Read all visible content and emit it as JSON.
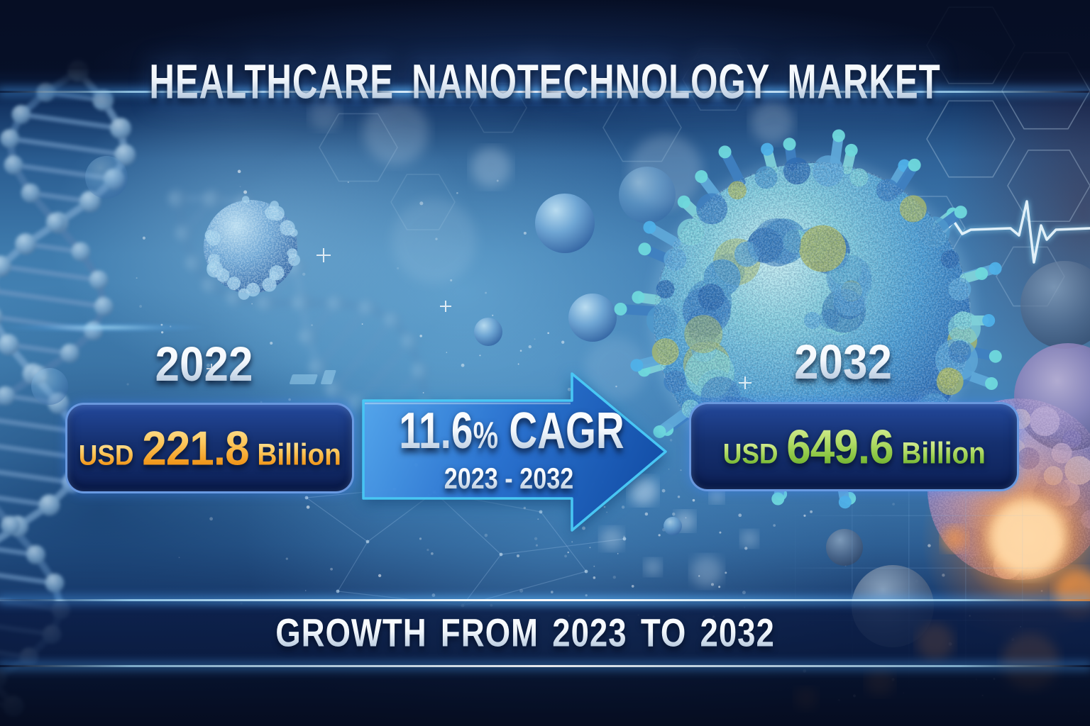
{
  "title": "HEALTHCARE NANOTECHNOLOGY MARKET",
  "left_stat": {
    "year": "2022",
    "currency": "USD",
    "value": "221.8",
    "unit": "Billion"
  },
  "right_stat": {
    "year": "2032",
    "currency": "USD",
    "value": "649.6",
    "unit": "Billion"
  },
  "growth": {
    "value": "11.6",
    "percent": "%",
    "label": "CAGR",
    "period": "2023 - 2032"
  },
  "footer": {
    "text": "GROWTH FROM 2023 TO 2032"
  },
  "colors": {
    "accent_orange": "#f5a623",
    "accent_green": "#7cbf3f",
    "arrow_blue": "#1c63c4",
    "badge_navy": "#132c66",
    "glow_cyan": "#45c8f5",
    "background_navy": "#0a1f4a"
  },
  "chart_data": {
    "type": "bar",
    "title": "Healthcare Nanotechnology Market",
    "categories": [
      "2022",
      "2032"
    ],
    "values": [
      221.8,
      649.6
    ],
    "unit": "USD Billion",
    "cagr_percent": 11.6,
    "cagr_period": "2023 - 2032",
    "annotations": [
      "11.6% CAGR 2023 - 2032",
      "GROWTH FROM 2023 TO 2032"
    ]
  }
}
